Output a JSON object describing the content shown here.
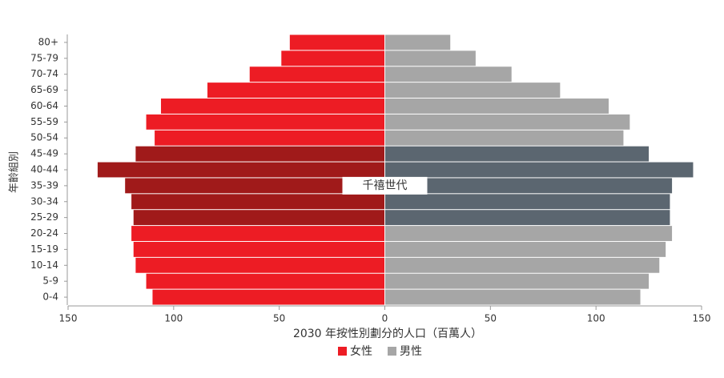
{
  "chart_data": {
    "type": "pyramid",
    "categories": [
      "0-4",
      "5-9",
      "10-14",
      "15-19",
      "20-24",
      "25-29",
      "30-34",
      "35-39",
      "40-44",
      "45-49",
      "50-54",
      "55-59",
      "60-64",
      "65-69",
      "70-74",
      "75-79",
      "80+"
    ],
    "series": [
      {
        "name": "女性",
        "color": "#ed1c24",
        "highlight_color": "#a01a1a",
        "side": "left",
        "values": [
          110,
          113,
          118,
          119,
          120,
          119,
          120,
          123,
          136,
          118,
          109,
          113,
          106,
          84,
          64,
          49,
          45
        ]
      },
      {
        "name": "男性",
        "color": "#a6a6a6",
        "highlight_color": "#5b6670",
        "side": "right",
        "values": [
          121,
          125,
          130,
          133,
          136,
          135,
          135,
          136,
          146,
          125,
          113,
          116,
          106,
          83,
          60,
          43,
          31
        ]
      }
    ],
    "highlight": {
      "label": "千禧世代",
      "categories": [
        "25-29",
        "30-34",
        "35-39",
        "40-44",
        "45-49"
      ]
    },
    "xlim": [
      -150,
      150
    ],
    "xticks": [
      {
        "value": -150,
        "label": "150"
      },
      {
        "value": -100,
        "label": "100"
      },
      {
        "value": -50,
        "label": "50"
      },
      0,
      50,
      100,
      150
    ],
    "xlabel": "2030 年按性別劃分的人口（百萬人）",
    "ylabel": "年齡組別"
  }
}
